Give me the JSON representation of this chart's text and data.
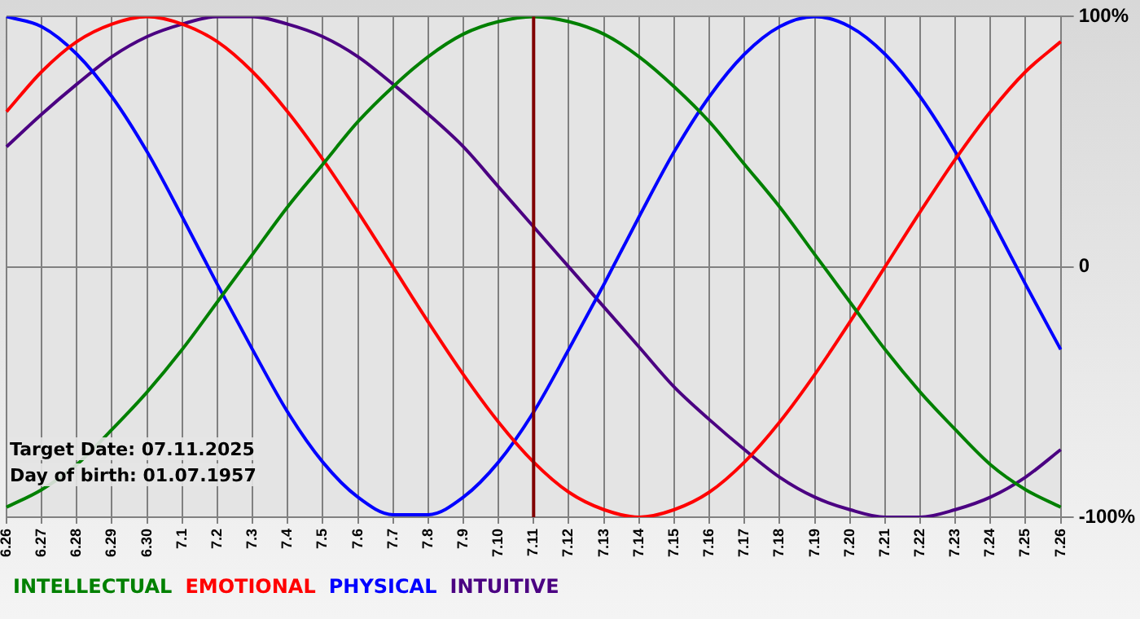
{
  "chart_data": {
    "type": "line",
    "categories": [
      "6.26",
      "6.27",
      "6.28",
      "6.29",
      "6.30",
      "7.1",
      "7.2",
      "7.3",
      "7.4",
      "7.5",
      "7.6",
      "7.7",
      "7.8",
      "7.9",
      "7.10",
      "7.11",
      "7.12",
      "7.13",
      "7.14",
      "7.15",
      "7.16",
      "7.17",
      "7.18",
      "7.19",
      "7.20",
      "7.21",
      "7.22",
      "7.23",
      "7.24",
      "7.25",
      "7.26"
    ],
    "series": [
      {
        "name": "INTELLECTUAL",
        "color": "#008000",
        "values": [
          -96,
          -89,
          -79,
          -65,
          -50,
          -33,
          -14,
          5,
          24,
          41,
          58,
          72,
          84,
          93,
          98,
          100,
          98,
          93,
          84,
          72,
          58,
          41,
          24,
          5,
          -14,
          -33,
          -50,
          -65,
          -79,
          -89,
          -96
        ]
      },
      {
        "name": "EMOTIONAL",
        "color": "#ff0000",
        "values": [
          62,
          78,
          90,
          97,
          100,
          97,
          90,
          78,
          62,
          43,
          22,
          0,
          -22,
          -43,
          -62,
          -78,
          -90,
          -97,
          -100,
          -97,
          -90,
          -78,
          -62,
          -43,
          -22,
          0,
          22,
          43,
          62,
          78,
          90
        ]
      },
      {
        "name": "PHYSICAL",
        "color": "#0000ff",
        "values": [
          100,
          96,
          85,
          68,
          46,
          20,
          -7,
          -33,
          -58,
          -78,
          -92,
          -99,
          -99,
          -92,
          -78,
          -58,
          -33,
          -7,
          20,
          46,
          68,
          85,
          96,
          100,
          96,
          85,
          68,
          46,
          20,
          -7,
          -33
        ]
      },
      {
        "name": "INTUITIVE",
        "color": "#4b0082",
        "values": [
          48,
          61,
          73,
          84,
          92,
          97,
          100,
          100,
          97,
          92,
          84,
          73,
          61,
          48,
          32,
          16,
          0,
          -16,
          -32,
          -48,
          -61,
          -73,
          -84,
          -92,
          -97,
          -100,
          -100,
          -97,
          -92,
          -84,
          -73
        ]
      }
    ],
    "ylim": [
      -100,
      100
    ],
    "yticks": [
      {
        "value": 100,
        "label": "100%"
      },
      0,
      {
        "value": -100,
        "label": "-100%"
      }
    ],
    "grid": true,
    "legend": "bottom left",
    "marker": "none",
    "line_style": "solid",
    "ref_lines": [
      {
        "axis": "x",
        "value": "7.11",
        "color": "#800000"
      }
    ],
    "annotations": [
      "Target Date: 07.11.2025",
      "Day of birth: 01.07.1957"
    ]
  }
}
